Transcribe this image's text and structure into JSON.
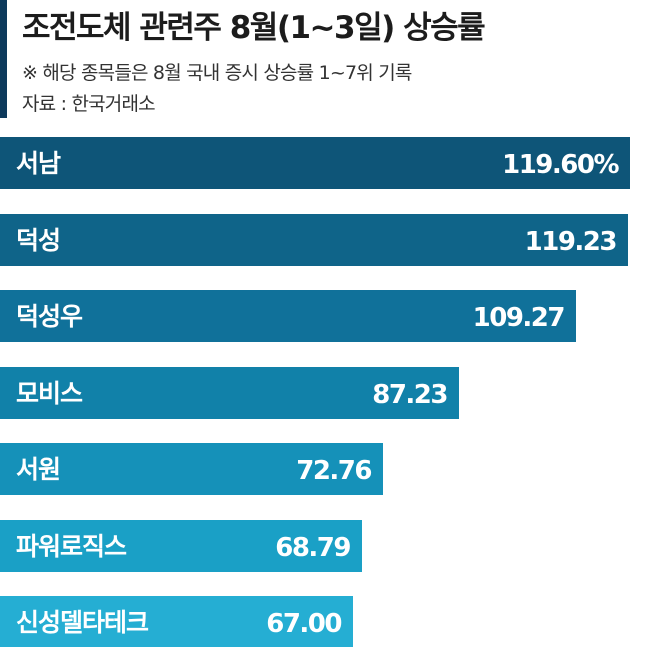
{
  "header": {
    "title": "조전도체 관련주 8월(1~3일) 상승률",
    "subtitle": "※ 해당 종목들은 8월 국내 증시 상승률 1~7위 기록",
    "source": "자료 : 한국거래소"
  },
  "colors": {
    "accent": "#0d3a5c",
    "bars": [
      "#0e5578",
      "#0f6489",
      "#10719a",
      "#1181a9",
      "#1591b9",
      "#1aa0c6",
      "#25aed3"
    ]
  },
  "chart_data": {
    "type": "bar",
    "orientation": "horizontal",
    "categories": [
      "서남",
      "덕성",
      "덕성우",
      "모비스",
      "서원",
      "파워로직스",
      "신성델타테크"
    ],
    "values": [
      119.6,
      119.23,
      109.27,
      87.23,
      72.76,
      68.79,
      67.0
    ],
    "value_labels": [
      "119.60%",
      "119.23",
      "109.27",
      "87.23",
      "72.76",
      "68.79",
      "67.00"
    ],
    "unit": "%",
    "xlim": [
      0,
      121.5
    ],
    "grid": false,
    "legend": "none"
  }
}
